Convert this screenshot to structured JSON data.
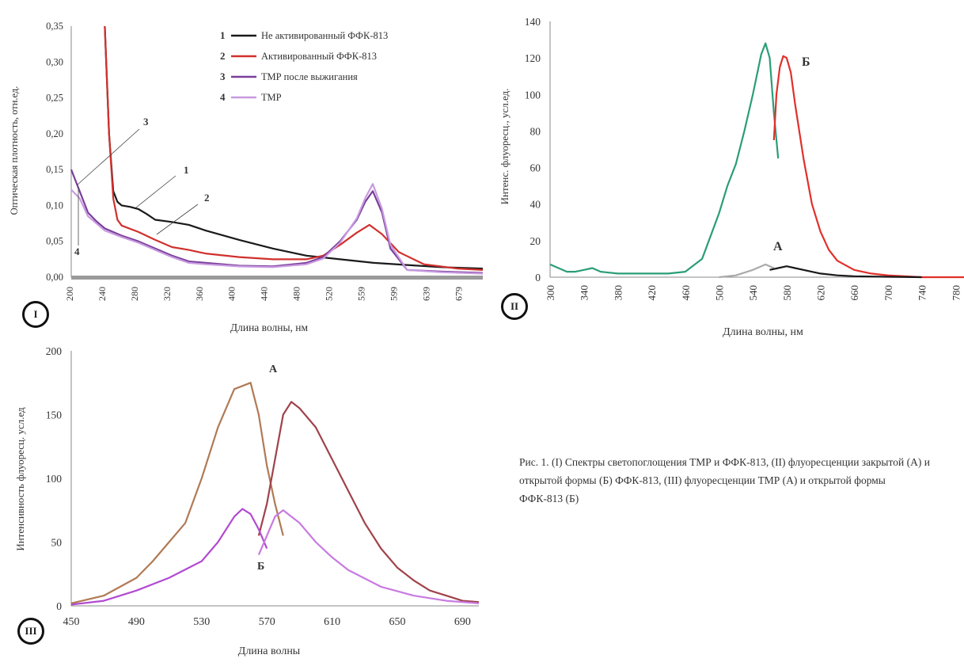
{
  "figure": {
    "caption": "Рис. 1. (I) Спектры светопоглощения ТМР и ФФК-813, (II) флуоресценции закрытой (А) и открытой формы (Б) ФФК-813, (III) флуоресценции ТМР (А) и открытой формы ФФК-813 (Б)"
  },
  "chart_data": [
    {
      "id": "I",
      "panel_label": "I",
      "type": "line",
      "xlabel": "Длина волны, нм",
      "ylabel": "Оптическая плотность, отн.ед.",
      "xticks": [
        "200",
        "240",
        "280",
        "320",
        "360",
        "400",
        "440",
        "480",
        "520",
        "559",
        "599",
        "639",
        "679"
      ],
      "ylim": [
        0,
        0.35
      ],
      "yticks": [
        "0,00",
        "0,05",
        "0,10",
        "0,15",
        "0,20",
        "0,25",
        "0,30",
        "0,35"
      ],
      "legend": [
        {
          "num": "1",
          "label": "Не активированный ФФК-813",
          "color": "#1a1a1a"
        },
        {
          "num": "2",
          "label": "Активированный ФФК-813",
          "color": "#d0312d"
        },
        {
          "num": "3",
          "label": "ТМР после выжигания",
          "color": "#7a3f9a"
        },
        {
          "num": "4",
          "label": "ТМР",
          "color": "#c89ae0"
        }
      ],
      "callouts": [
        "1",
        "2",
        "3",
        "4"
      ],
      "series": [
        {
          "color": "#1a1a1a",
          "x": [
            240,
            245,
            250,
            255,
            260,
            270,
            280,
            290,
            300,
            320,
            340,
            360,
            400,
            440,
            480,
            520,
            560,
            600,
            640,
            690
          ],
          "y": [
            0.35,
            0.2,
            0.12,
            0.105,
            0.1,
            0.098,
            0.095,
            0.088,
            0.08,
            0.077,
            0.073,
            0.065,
            0.052,
            0.04,
            0.03,
            0.025,
            0.02,
            0.017,
            0.014,
            0.012
          ]
        },
        {
          "color": "#d0312d",
          "x": [
            240,
            245,
            250,
            255,
            260,
            280,
            300,
            320,
            340,
            360,
            400,
            440,
            480,
            500,
            520,
            540,
            555,
            570,
            590,
            620,
            660,
            690
          ],
          "y": [
            0.35,
            0.2,
            0.11,
            0.08,
            0.072,
            0.063,
            0.052,
            0.042,
            0.038,
            0.033,
            0.028,
            0.025,
            0.025,
            0.03,
            0.045,
            0.062,
            0.073,
            0.06,
            0.035,
            0.018,
            0.012,
            0.01
          ]
        },
        {
          "color": "#7a3f9a",
          "x": [
            200,
            210,
            220,
            230,
            240,
            260,
            280,
            300,
            320,
            340,
            360,
            400,
            440,
            480,
            500,
            520,
            540,
            550,
            559,
            570,
            580,
            600,
            640,
            690
          ],
          "y": [
            0.15,
            0.12,
            0.09,
            0.078,
            0.068,
            0.058,
            0.05,
            0.04,
            0.03,
            0.022,
            0.02,
            0.016,
            0.015,
            0.02,
            0.028,
            0.05,
            0.08,
            0.105,
            0.12,
            0.09,
            0.04,
            0.01,
            0.008,
            0.006
          ]
        },
        {
          "color": "#c89ae0",
          "x": [
            200,
            210,
            220,
            230,
            240,
            260,
            280,
            300,
            320,
            340,
            360,
            400,
            440,
            480,
            500,
            520,
            540,
            550,
            559,
            570,
            580,
            600,
            640,
            690
          ],
          "y": [
            0.122,
            0.11,
            0.085,
            0.075,
            0.065,
            0.056,
            0.048,
            0.038,
            0.028,
            0.02,
            0.018,
            0.015,
            0.014,
            0.018,
            0.026,
            0.048,
            0.082,
            0.11,
            0.13,
            0.095,
            0.045,
            0.01,
            0.007,
            0.005
          ]
        }
      ]
    },
    {
      "id": "II",
      "panel_label": "II",
      "type": "line",
      "xlabel": "Длина волны, нм",
      "ylabel": "Интенс. флуоресц., усл.ед.",
      "xlim": [
        300,
        790
      ],
      "xticks": [
        300,
        340,
        380,
        420,
        460,
        500,
        540,
        580,
        620,
        660,
        700,
        740,
        780
      ],
      "ylim": [
        0,
        140
      ],
      "yticks": [
        0,
        20,
        40,
        60,
        80,
        100,
        120,
        140
      ],
      "annotations": [
        "А",
        "Б"
      ],
      "series": [
        {
          "color": "#2a9d78",
          "x": [
            300,
            310,
            320,
            330,
            340,
            350,
            360,
            380,
            400,
            420,
            440,
            460,
            480,
            500,
            510,
            520,
            530,
            540,
            550,
            555,
            560,
            565,
            570
          ],
          "y": [
            7,
            5,
            3,
            3,
            4,
            5,
            3,
            2,
            2,
            2,
            2,
            3,
            10,
            35,
            50,
            62,
            80,
            100,
            122,
            128,
            120,
            90,
            65
          ]
        },
        {
          "color": "#e0302a",
          "x": [
            565,
            568,
            572,
            576,
            580,
            585,
            590,
            600,
            610,
            620,
            630,
            640,
            660,
            680,
            700,
            720,
            740,
            790
          ],
          "y": [
            75,
            100,
            115,
            121,
            120,
            112,
            95,
            65,
            40,
            25,
            15,
            9,
            4,
            2,
            1,
            0.5,
            0,
            0
          ]
        },
        {
          "color": "#aaaaaa",
          "x": [
            500,
            520,
            540,
            550,
            555,
            560,
            565
          ],
          "y": [
            0,
            1,
            4,
            6,
            7,
            6,
            5
          ]
        },
        {
          "color": "#1a1a1a",
          "x": [
            560,
            570,
            580,
            590,
            600,
            620,
            640,
            660,
            700,
            740
          ],
          "y": [
            4,
            5,
            6,
            5,
            4,
            2,
            1,
            0.5,
            0.2,
            0
          ]
        }
      ]
    },
    {
      "id": "III",
      "panel_label": "III",
      "type": "line",
      "xlabel": "Длина волны",
      "ylabel": "Интенсивность флуоресц. усл.ед",
      "xlim": [
        450,
        700
      ],
      "xticks": [
        450,
        490,
        530,
        570,
        610,
        650,
        690
      ],
      "ylim": [
        0,
        200
      ],
      "yticks": [
        0,
        50,
        100,
        150,
        200
      ],
      "annotations": [
        "А",
        "Б"
      ],
      "series": [
        {
          "color": "#b07a55",
          "x": [
            450,
            470,
            490,
            500,
            510,
            520,
            530,
            540,
            550,
            560,
            565,
            570,
            575,
            580
          ],
          "y": [
            2,
            8,
            22,
            35,
            50,
            65,
            100,
            140,
            170,
            175,
            150,
            110,
            80,
            55
          ]
        },
        {
          "color": "#a0424a",
          "x": [
            565,
            570,
            575,
            580,
            585,
            590,
            600,
            610,
            620,
            630,
            640,
            650,
            660,
            670,
            680,
            690,
            700
          ],
          "y": [
            55,
            80,
            115,
            150,
            160,
            155,
            140,
            115,
            90,
            65,
            45,
            30,
            20,
            12,
            8,
            4,
            3
          ]
        },
        {
          "color": "#b24ad0",
          "x": [
            450,
            470,
            490,
            510,
            530,
            540,
            550,
            555,
            560,
            565,
            570
          ],
          "y": [
            1,
            4,
            12,
            22,
            35,
            50,
            70,
            76,
            72,
            60,
            45
          ]
        },
        {
          "color": "#c87ae0",
          "x": [
            565,
            570,
            575,
            580,
            590,
            600,
            610,
            620,
            640,
            660,
            680,
            700
          ],
          "y": [
            40,
            55,
            70,
            75,
            65,
            50,
            38,
            28,
            15,
            8,
            4,
            2
          ]
        }
      ]
    }
  ]
}
